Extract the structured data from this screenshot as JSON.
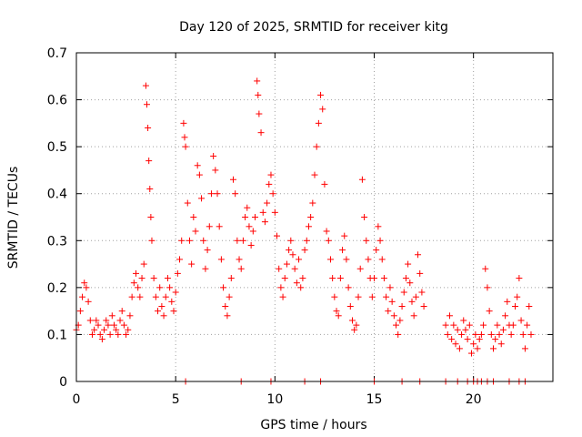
{
  "chart_data": {
    "type": "scatter",
    "title": "Day 120 of 2025, SRMTID for receiver kitg",
    "xlabel": "GPS time / hours",
    "ylabel": "SRMTID / TECUs",
    "xlim": [
      0,
      24
    ],
    "ylim": [
      0,
      0.7
    ],
    "xticks": [
      0,
      5,
      10,
      15,
      20
    ],
    "yticks": [
      0,
      0.1,
      0.2,
      0.3,
      0.4,
      0.5,
      0.6,
      0.7
    ],
    "grid": true,
    "marker": "+",
    "color": "#ff0000",
    "series": [
      {
        "name": "SRMTID",
        "points": [
          [
            0.0,
            0.11
          ],
          [
            0.1,
            0.12
          ],
          [
            0.2,
            0.15
          ],
          [
            0.3,
            0.18
          ],
          [
            0.4,
            0.21
          ],
          [
            0.5,
            0.2
          ],
          [
            0.6,
            0.17
          ],
          [
            0.7,
            0.13
          ],
          [
            0.8,
            0.1
          ],
          [
            0.9,
            0.11
          ],
          [
            1.0,
            0.13
          ],
          [
            1.1,
            0.12
          ],
          [
            1.2,
            0.1
          ],
          [
            1.3,
            0.09
          ],
          [
            1.4,
            0.11
          ],
          [
            1.5,
            0.13
          ],
          [
            1.6,
            0.12
          ],
          [
            1.7,
            0.1
          ],
          [
            1.8,
            0.14
          ],
          [
            1.9,
            0.12
          ],
          [
            2.0,
            0.11
          ],
          [
            2.1,
            0.1
          ],
          [
            2.2,
            0.13
          ],
          [
            2.3,
            0.15
          ],
          [
            2.4,
            0.12
          ],
          [
            2.5,
            0.1
          ],
          [
            2.6,
            0.11
          ],
          [
            2.7,
            0.14
          ],
          [
            2.8,
            0.18
          ],
          [
            2.9,
            0.21
          ],
          [
            3.0,
            0.23
          ],
          [
            3.1,
            0.2
          ],
          [
            3.2,
            0.18
          ],
          [
            3.3,
            0.22
          ],
          [
            3.4,
            0.25
          ],
          [
            3.5,
            0.63
          ],
          [
            3.55,
            0.59
          ],
          [
            3.6,
            0.54
          ],
          [
            3.65,
            0.47
          ],
          [
            3.7,
            0.41
          ],
          [
            3.75,
            0.35
          ],
          [
            3.8,
            0.3
          ],
          [
            3.9,
            0.22
          ],
          [
            4.0,
            0.18
          ],
          [
            4.1,
            0.15
          ],
          [
            4.2,
            0.2
          ],
          [
            4.3,
            0.16
          ],
          [
            4.4,
            0.14
          ],
          [
            4.5,
            0.18
          ],
          [
            4.6,
            0.22
          ],
          [
            4.7,
            0.2
          ],
          [
            4.8,
            0.17
          ],
          [
            4.9,
            0.15
          ],
          [
            5.0,
            0.19
          ],
          [
            5.1,
            0.23
          ],
          [
            5.2,
            0.26
          ],
          [
            5.3,
            0.3
          ],
          [
            5.4,
            0.55
          ],
          [
            5.45,
            0.52
          ],
          [
            5.5,
            0.5
          ],
          [
            5.6,
            0.38
          ],
          [
            5.7,
            0.3
          ],
          [
            5.8,
            0.25
          ],
          [
            5.9,
            0.35
          ],
          [
            6.0,
            0.32
          ],
          [
            6.1,
            0.46
          ],
          [
            6.2,
            0.44
          ],
          [
            6.3,
            0.39
          ],
          [
            6.4,
            0.3
          ],
          [
            6.5,
            0.24
          ],
          [
            6.6,
            0.28
          ],
          [
            6.7,
            0.33
          ],
          [
            6.8,
            0.4
          ],
          [
            6.9,
            0.48
          ],
          [
            7.0,
            0.45
          ],
          [
            7.1,
            0.4
          ],
          [
            7.2,
            0.33
          ],
          [
            7.3,
            0.26
          ],
          [
            7.4,
            0.2
          ],
          [
            7.5,
            0.16
          ],
          [
            7.6,
            0.14
          ],
          [
            7.7,
            0.18
          ],
          [
            7.8,
            0.22
          ],
          [
            7.9,
            0.43
          ],
          [
            8.0,
            0.4
          ],
          [
            8.1,
            0.3
          ],
          [
            8.2,
            0.26
          ],
          [
            8.3,
            0.24
          ],
          [
            8.4,
            0.3
          ],
          [
            8.5,
            0.35
          ],
          [
            8.6,
            0.37
          ],
          [
            8.7,
            0.33
          ],
          [
            8.8,
            0.29
          ],
          [
            8.9,
            0.32
          ],
          [
            9.0,
            0.35
          ],
          [
            9.1,
            0.64
          ],
          [
            9.15,
            0.61
          ],
          [
            9.2,
            0.57
          ],
          [
            9.3,
            0.53
          ],
          [
            9.4,
            0.36
          ],
          [
            9.5,
            0.34
          ],
          [
            9.6,
            0.38
          ],
          [
            9.7,
            0.42
          ],
          [
            9.8,
            0.44
          ],
          [
            9.9,
            0.4
          ],
          [
            10.0,
            0.36
          ],
          [
            10.1,
            0.31
          ],
          [
            10.2,
            0.24
          ],
          [
            10.3,
            0.2
          ],
          [
            10.4,
            0.18
          ],
          [
            10.5,
            0.22
          ],
          [
            10.6,
            0.25
          ],
          [
            10.7,
            0.28
          ],
          [
            10.8,
            0.3
          ],
          [
            10.9,
            0.27
          ],
          [
            11.0,
            0.24
          ],
          [
            11.1,
            0.21
          ],
          [
            11.2,
            0.26
          ],
          [
            11.3,
            0.2
          ],
          [
            11.4,
            0.22
          ],
          [
            11.5,
            0.28
          ],
          [
            11.6,
            0.3
          ],
          [
            11.7,
            0.33
          ],
          [
            11.8,
            0.35
          ],
          [
            11.9,
            0.38
          ],
          [
            12.0,
            0.44
          ],
          [
            12.1,
            0.5
          ],
          [
            12.2,
            0.55
          ],
          [
            12.3,
            0.61
          ],
          [
            12.4,
            0.58
          ],
          [
            12.5,
            0.42
          ],
          [
            12.6,
            0.32
          ],
          [
            12.7,
            0.3
          ],
          [
            12.8,
            0.26
          ],
          [
            12.9,
            0.22
          ],
          [
            13.0,
            0.18
          ],
          [
            13.1,
            0.15
          ],
          [
            13.2,
            0.14
          ],
          [
            13.3,
            0.22
          ],
          [
            13.4,
            0.28
          ],
          [
            13.5,
            0.31
          ],
          [
            13.6,
            0.26
          ],
          [
            13.7,
            0.2
          ],
          [
            13.8,
            0.16
          ],
          [
            13.9,
            0.13
          ],
          [
            14.0,
            0.11
          ],
          [
            14.1,
            0.12
          ],
          [
            14.2,
            0.18
          ],
          [
            14.3,
            0.24
          ],
          [
            14.4,
            0.43
          ],
          [
            14.5,
            0.35
          ],
          [
            14.6,
            0.3
          ],
          [
            14.7,
            0.26
          ],
          [
            14.8,
            0.22
          ],
          [
            14.9,
            0.18
          ],
          [
            15.0,
            0.22
          ],
          [
            15.1,
            0.28
          ],
          [
            15.2,
            0.33
          ],
          [
            15.3,
            0.3
          ],
          [
            15.4,
            0.26
          ],
          [
            15.5,
            0.22
          ],
          [
            15.6,
            0.18
          ],
          [
            15.7,
            0.15
          ],
          [
            15.8,
            0.2
          ],
          [
            15.9,
            0.17
          ],
          [
            16.0,
            0.14
          ],
          [
            16.1,
            0.12
          ],
          [
            16.2,
            0.1
          ],
          [
            16.3,
            0.13
          ],
          [
            16.4,
            0.16
          ],
          [
            16.5,
            0.19
          ],
          [
            16.6,
            0.22
          ],
          [
            16.7,
            0.25
          ],
          [
            16.8,
            0.21
          ],
          [
            16.9,
            0.17
          ],
          [
            17.0,
            0.14
          ],
          [
            17.1,
            0.18
          ],
          [
            17.2,
            0.27
          ],
          [
            17.3,
            0.23
          ],
          [
            17.4,
            0.19
          ],
          [
            17.5,
            0.16
          ],
          [
            18.6,
            0.12
          ],
          [
            18.7,
            0.1
          ],
          [
            18.8,
            0.14
          ],
          [
            18.9,
            0.09
          ],
          [
            19.0,
            0.12
          ],
          [
            19.1,
            0.08
          ],
          [
            19.2,
            0.11
          ],
          [
            19.3,
            0.07
          ],
          [
            19.4,
            0.1
          ],
          [
            19.5,
            0.13
          ],
          [
            19.6,
            0.11
          ],
          [
            19.7,
            0.09
          ],
          [
            19.8,
            0.12
          ],
          [
            19.9,
            0.06
          ],
          [
            20.0,
            0.08
          ],
          [
            20.1,
            0.1
          ],
          [
            20.2,
            0.07
          ],
          [
            20.3,
            0.09
          ],
          [
            20.4,
            0.1
          ],
          [
            20.5,
            0.12
          ],
          [
            20.6,
            0.24
          ],
          [
            20.7,
            0.2
          ],
          [
            20.8,
            0.15
          ],
          [
            20.9,
            0.1
          ],
          [
            21.0,
            0.07
          ],
          [
            21.1,
            0.09
          ],
          [
            21.2,
            0.12
          ],
          [
            21.3,
            0.1
          ],
          [
            21.4,
            0.08
          ],
          [
            21.5,
            0.11
          ],
          [
            21.6,
            0.14
          ],
          [
            21.7,
            0.17
          ],
          [
            21.8,
            0.12
          ],
          [
            21.9,
            0.1
          ],
          [
            22.0,
            0.12
          ],
          [
            22.1,
            0.16
          ],
          [
            22.2,
            0.18
          ],
          [
            22.3,
            0.22
          ],
          [
            22.4,
            0.13
          ],
          [
            22.5,
            0.1
          ],
          [
            22.6,
            0.07
          ],
          [
            22.7,
            0.12
          ],
          [
            22.8,
            0.16
          ],
          [
            22.9,
            0.1
          ]
        ]
      }
    ],
    "zero_points": [
      5.5,
      8.3,
      9.8,
      11.5,
      12.3,
      15.0,
      16.4,
      17.3,
      18.6,
      19.2,
      19.7,
      20.0,
      20.2,
      20.4,
      20.7,
      21.0,
      21.8,
      22.3,
      22.6
    ]
  }
}
